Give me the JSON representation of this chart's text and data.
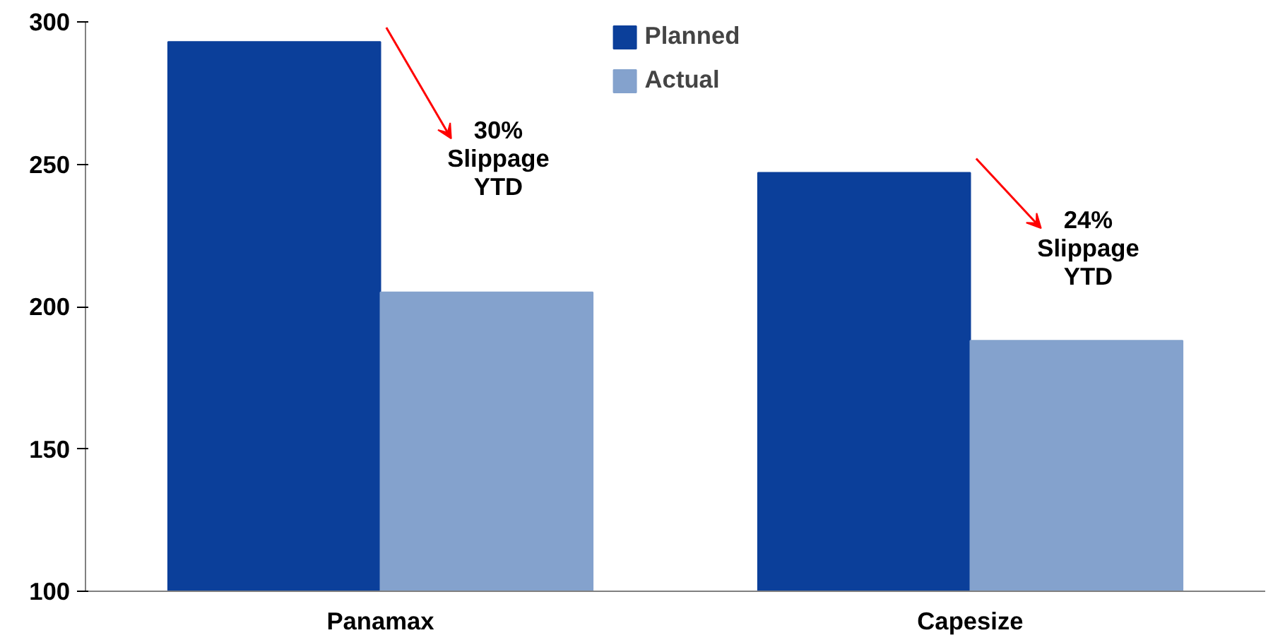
{
  "chart_data": {
    "type": "bar",
    "categories": [
      "Panamax",
      "Capesize"
    ],
    "series": [
      {
        "name": "Planned",
        "color": "#0b3f9a",
        "values": [
          293,
          247
        ]
      },
      {
        "name": "Actual",
        "color": "#84a2cd",
        "values": [
          205,
          188
        ]
      }
    ],
    "ylim": [
      100,
      300
    ],
    "yticks": [
      100,
      150,
      200,
      250,
      300
    ],
    "grid": false,
    "legend": "top",
    "annotations": [
      "30%\nSlippage\nYTD",
      "24%\nSlippage\nYTD"
    ]
  }
}
